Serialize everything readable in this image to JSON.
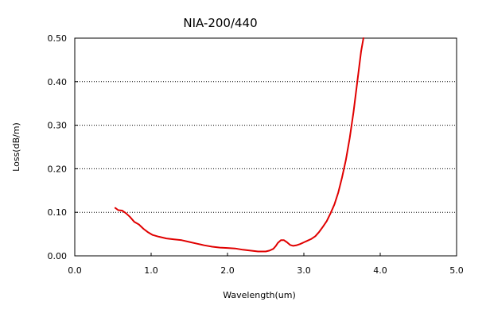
{
  "chart_data": {
    "type": "line",
    "title": "NIA-200/440",
    "xlabel": "Wavelength(um)",
    "ylabel": "Loss(dB/m)",
    "xlim": [
      0.0,
      5.0
    ],
    "ylim": [
      0.0,
      0.5
    ],
    "x_ticks": [
      "0.0",
      "1.0",
      "2.0",
      "3.0",
      "4.0",
      "5.0"
    ],
    "y_ticks": [
      "0.00",
      "0.10",
      "0.20",
      "0.30",
      "0.40",
      "0.50"
    ],
    "grid": "horizontal dotted",
    "legend": "none",
    "series": [
      {
        "color": "#e00000",
        "x": [
          0.53,
          0.57,
          0.62,
          0.67,
          0.72,
          0.78,
          0.84,
          0.9,
          0.96,
          1.02,
          1.1,
          1.2,
          1.3,
          1.4,
          1.5,
          1.6,
          1.7,
          1.8,
          1.9,
          2.0,
          2.1,
          2.2,
          2.3,
          2.4,
          2.5,
          2.55,
          2.6,
          2.63,
          2.66,
          2.7,
          2.74,
          2.78,
          2.82,
          2.86,
          2.9,
          2.95,
          3.0,
          3.05,
          3.1,
          3.15,
          3.2,
          3.25,
          3.3,
          3.35,
          3.4,
          3.45,
          3.5,
          3.55,
          3.6,
          3.65,
          3.7,
          3.75,
          3.78
        ],
        "y": [
          0.11,
          0.105,
          0.104,
          0.098,
          0.09,
          0.078,
          0.072,
          0.062,
          0.054,
          0.048,
          0.044,
          0.04,
          0.038,
          0.036,
          0.032,
          0.028,
          0.024,
          0.021,
          0.019,
          0.018,
          0.017,
          0.014,
          0.012,
          0.01,
          0.01,
          0.012,
          0.016,
          0.022,
          0.03,
          0.036,
          0.036,
          0.031,
          0.025,
          0.023,
          0.024,
          0.027,
          0.031,
          0.035,
          0.039,
          0.045,
          0.055,
          0.067,
          0.08,
          0.098,
          0.118,
          0.145,
          0.18,
          0.22,
          0.27,
          0.33,
          0.4,
          0.47,
          0.5
        ]
      }
    ]
  }
}
